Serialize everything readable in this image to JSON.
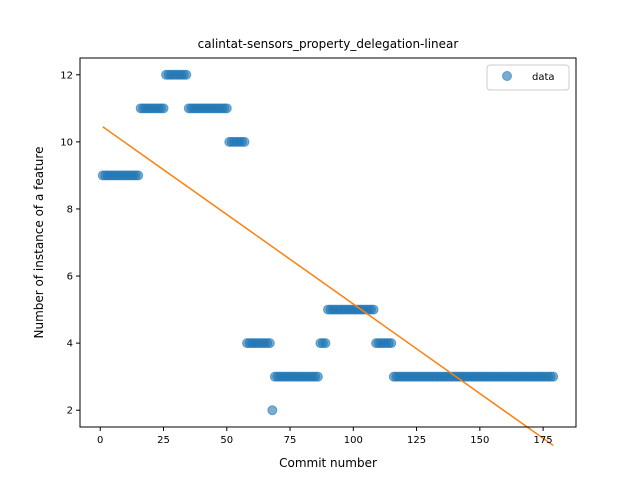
{
  "chart_data": {
    "type": "scatter",
    "title": "calintat-sensors_property_delegation-linear",
    "xlabel": "Commit number",
    "ylabel": "Number of instance of a feature",
    "xlim": [
      -8,
      188
    ],
    "ylim": [
      1.5,
      12.5
    ],
    "xticks": [
      0,
      25,
      50,
      75,
      100,
      125,
      150,
      175
    ],
    "yticks": [
      2,
      4,
      6,
      8,
      10,
      12
    ],
    "grid": false,
    "legend_position": "top-right",
    "colors": {
      "data": "#1f77b4",
      "fit": "#ff7f0e"
    },
    "series": [
      {
        "name": "data",
        "kind": "scatter",
        "runs": [
          {
            "x_start": 1,
            "x_end": 15,
            "y": 9
          },
          {
            "x_start": 16,
            "x_end": 25,
            "y": 11
          },
          {
            "x_start": 26,
            "x_end": 34,
            "y": 12
          },
          {
            "x_start": 35,
            "x_end": 50,
            "y": 11
          },
          {
            "x_start": 51,
            "x_end": 57,
            "y": 10
          },
          {
            "x_start": 58,
            "x_end": 67,
            "y": 4
          },
          {
            "x_start": 68,
            "x_end": 68,
            "y": 2
          },
          {
            "x_start": 69,
            "x_end": 86,
            "y": 3
          },
          {
            "x_start": 87,
            "x_end": 89,
            "y": 4
          },
          {
            "x_start": 90,
            "x_end": 108,
            "y": 5
          },
          {
            "x_start": 109,
            "x_end": 115,
            "y": 4
          },
          {
            "x_start": 116,
            "x_end": 179,
            "y": 3
          }
        ]
      },
      {
        "name": "",
        "kind": "line",
        "x": [
          1,
          179
        ],
        "y": [
          10.45,
          0.95
        ]
      }
    ]
  }
}
